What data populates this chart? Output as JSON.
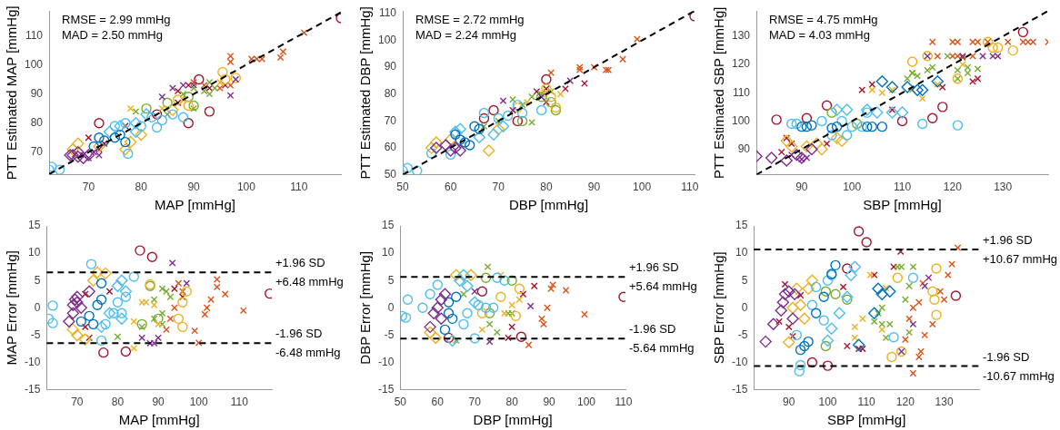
{
  "chart_data": [
    {
      "type": "scatter",
      "xlabel": "MAP [mmHg]",
      "ylabel": "PTT Estimated MAP [mmHg]",
      "xlim": [
        62.5,
        118
      ],
      "ylim": [
        62.3,
        118.5
      ],
      "xticks": [
        70,
        80,
        90,
        100,
        110
      ],
      "yticks": [
        70,
        80,
        90,
        100,
        110
      ],
      "annotations": [
        "RMSE = 2.99 mmHg",
        "MAD = 2.50 mmHg"
      ],
      "series": [
        {
          "type": "line",
          "color": "#000000",
          "line_style": "dashed",
          "x": [
            62.5,
            118
          ],
          "values": [
            62.5,
            118
          ]
        },
        {
          "color": "#7e2f8e",
          "marker": "diamond",
          "x": [
            67,
            68,
            69,
            70,
            68,
            66.5
          ],
          "values": [
            69,
            70,
            68,
            69,
            68.5,
            69
          ]
        },
        {
          "color": "#7e2f8e",
          "marker": "cross",
          "x": [
            69,
            70,
            71,
            72
          ],
          "values": [
            69,
            68,
            70,
            69
          ]
        },
        {
          "color": "#7e2f8e",
          "marker": "cross",
          "x": [
            84,
            86,
            90,
            97,
            98,
            88
          ],
          "values": [
            89,
            92,
            93,
            89.5,
            95,
            93
          ]
        },
        {
          "color": "#0072bd",
          "marker": "circle",
          "x": [
            71,
            72,
            73,
            75,
            77,
            76
          ],
          "values": [
            72,
            75,
            74,
            75,
            73.5,
            76
          ]
        },
        {
          "color": "#4dbeee",
          "marker": "circle",
          "x": [
            75,
            77,
            80,
            82,
            84,
            86,
            88,
            83
          ],
          "values": [
            79,
            80,
            79,
            82,
            81,
            83,
            82,
            78.5
          ]
        },
        {
          "color": "#4dbeee",
          "marker": "diamond",
          "x": [
            74,
            76,
            79,
            81,
            79
          ],
          "values": [
            77,
            79,
            80,
            83,
            77
          ]
        },
        {
          "color": "#4dbeee",
          "marker": "circle",
          "x": [
            62.5,
            63,
            64.5,
            77.5
          ],
          "values": [
            64,
            65,
            64,
            69.5
          ]
        },
        {
          "color": "#edb120",
          "marker": "diamond",
          "x": [
            67,
            68,
            72,
            77,
            78,
            80,
            86
          ],
          "values": [
            71,
            73,
            72,
            71,
            73.5,
            76,
            84.5
          ]
        },
        {
          "color": "#edb120",
          "marker": "circle",
          "x": [
            95.5,
            98,
            89,
            87,
            96
          ],
          "values": [
            97.5,
            95.5,
            86,
            88,
            95
          ]
        },
        {
          "color": "#edb120",
          "marker": "cross",
          "x": [
            78,
            84,
            88,
            95
          ],
          "values": [
            85,
            85,
            88,
            94
          ]
        },
        {
          "color": "#77ac30",
          "marker": "circle",
          "x": [
            81,
            85,
            90,
            89
          ],
          "values": [
            85,
            87,
            86,
            89
          ]
        },
        {
          "color": "#77ac30",
          "marker": "cross",
          "x": [
            88,
            90,
            92,
            93,
            94
          ],
          "values": [
            90,
            92,
            91,
            94,
            92
          ]
        },
        {
          "color": "#77ac30",
          "marker": "cross",
          "x": [
            79,
            85,
            90,
            93
          ],
          "values": [
            84,
            83,
            85,
            90
          ]
        },
        {
          "color": "#d95319",
          "marker": "cross",
          "x": [
            97,
            97,
            101,
            102,
            103,
            106.5,
            107,
            111
          ],
          "values": [
            103,
            101,
            102,
            102,
            102,
            102.5,
            104.5,
            111
          ]
        },
        {
          "color": "#d95319",
          "marker": "cross",
          "x": [
            90,
            92,
            95,
            97
          ],
          "values": [
            94,
            93,
            92,
            93
          ]
        },
        {
          "color": "#a2142f",
          "marker": "cross",
          "x": [
            70,
            72,
            73,
            77,
            93,
            96
          ],
          "values": [
            75,
            71,
            73,
            79,
            92,
            93
          ]
        },
        {
          "color": "#a2142f",
          "marker": "cross",
          "x": [
            87,
            89,
            87
          ],
          "values": [
            91,
            93,
            87
          ]
        },
        {
          "color": "#a2142f",
          "marker": "circle",
          "x": [
            72,
            83,
            89,
            93,
            91,
            118
          ],
          "values": [
            80,
            83,
            80,
            84,
            95,
            116
          ]
        }
      ]
    },
    {
      "type": "scatter",
      "xlabel": "DBP [mmHg]",
      "ylabel": "PTT Estimated DBP [mmHg]",
      "xlim": [
        50,
        111
      ],
      "ylim": [
        50,
        111
      ],
      "xticks": [
        50,
        60,
        70,
        80,
        90,
        100,
        110
      ],
      "yticks": [
        50,
        60,
        70,
        80,
        90,
        100,
        110
      ],
      "annotations": [
        "RMSE = 2.72 mmHg",
        "MAD = 2.24 mmHg"
      ],
      "series": [
        {
          "type": "line",
          "color": "#000000",
          "line_style": "dashed",
          "x": [
            50,
            111
          ],
          "values": [
            50,
            111
          ]
        },
        {
          "color": "#7e2f8e",
          "marker": "diamond",
          "x": [
            57,
            59,
            60,
            61,
            62
          ],
          "values": [
            60,
            61,
            59,
            60,
            59
          ]
        },
        {
          "color": "#7e2f8e",
          "marker": "cross",
          "x": [
            71,
            73,
            85,
            79
          ],
          "values": [
            77.5,
            74,
            85,
            79
          ]
        },
        {
          "color": "#0072bd",
          "marker": "circle",
          "x": [
            61,
            62,
            63,
            64,
            65,
            66
          ],
          "values": [
            65,
            63,
            62,
            61,
            68,
            67
          ]
        },
        {
          "color": "#4dbeee",
          "marker": "circle",
          "x": [
            67,
            70,
            72,
            75,
            79,
            74
          ],
          "values": [
            73,
            71,
            72,
            73,
            74,
            76
          ]
        },
        {
          "color": "#4dbeee",
          "marker": "diamond",
          "x": [
            61,
            62,
            66,
            69,
            71
          ],
          "values": [
            66,
            67,
            64,
            65,
            68
          ]
        },
        {
          "color": "#4dbeee",
          "marker": "circle",
          "x": [
            50,
            51,
            53,
            56,
            60
          ],
          "values": [
            51.5,
            52.5,
            51.5,
            58,
            57.5
          ]
        },
        {
          "color": "#edb120",
          "marker": "diamond",
          "x": [
            56,
            57,
            60,
            68,
            70
          ],
          "values": [
            60,
            62,
            63,
            59,
            67
          ]
        },
        {
          "color": "#edb120",
          "marker": "circle",
          "x": [
            80,
            81,
            82,
            74
          ],
          "values": [
            82,
            79,
            75,
            75
          ]
        },
        {
          "color": "#edb120",
          "marker": "cross",
          "x": [
            73,
            76,
            80,
            83
          ],
          "values": [
            74,
            77,
            81,
            80
          ]
        },
        {
          "color": "#77ac30",
          "marker": "circle",
          "x": [
            75,
            79,
            81,
            82
          ],
          "values": [
            70,
            79,
            77,
            74
          ]
        },
        {
          "color": "#77ac30",
          "marker": "cross",
          "x": [
            73,
            75,
            77,
            79
          ],
          "values": [
            78,
            76,
            79,
            80
          ]
        },
        {
          "color": "#77ac30",
          "marker": "cross",
          "x": [
            67,
            70,
            77,
            81
          ],
          "values": [
            68,
            70,
            69.5,
            81
          ]
        },
        {
          "color": "#d95319",
          "marker": "cross",
          "x": [
            81,
            87,
            87,
            90,
            92.5,
            93,
            96,
            99
          ],
          "values": [
            88,
            89,
            90,
            90,
            89,
            89,
            93,
            100.5
          ]
        },
        {
          "color": "#a2142f",
          "marker": "cross",
          "x": [
            78,
            80,
            84,
            88,
            80
          ],
          "values": [
            81,
            82,
            82,
            84,
            77
          ]
        },
        {
          "color": "#a2142f",
          "marker": "circle",
          "x": [
            67,
            69,
            74,
            80,
            111
          ],
          "values": [
            71,
            74,
            70,
            85.5,
            109
          ]
        }
      ]
    },
    {
      "type": "scatter",
      "xlabel": "SBP [mmHg]",
      "ylabel": "PTT Estimated SBP [mmHg]",
      "xlim": [
        81,
        139
      ],
      "ylim": [
        81,
        139
      ],
      "xticks": [
        90,
        100,
        110,
        120,
        130
      ],
      "yticks": [
        90,
        100,
        110,
        120,
        130
      ],
      "annotations": [
        "RMSE = 4.75 mmHg",
        "MAD = 4.03 mmHg"
      ],
      "series": [
        {
          "type": "line",
          "color": "#000000",
          "line_style": "dashed",
          "x": [
            81,
            139
          ],
          "values": [
            81,
            139
          ]
        },
        {
          "color": "#7e2f8e",
          "marker": "diamond",
          "x": [
            81,
            84,
            87,
            89,
            90,
            92
          ],
          "values": [
            87.5,
            87,
            86,
            88,
            87,
            90
          ]
        },
        {
          "color": "#7e2f8e",
          "marker": "cross",
          "x": [
            88,
            90,
            91
          ],
          "values": [
            88,
            86.5,
            87
          ]
        },
        {
          "color": "#7e2f8e",
          "marker": "cross",
          "x": [
            115,
            126,
            128,
            129,
            122
          ],
          "values": [
            123,
            123,
            123,
            123,
            123
          ]
        },
        {
          "color": "#0072bd",
          "marker": "circle",
          "x": [
            90,
            91,
            92,
            96,
            97,
            103,
            104,
            106
          ],
          "values": [
            98,
            98,
            98.5,
            97.5,
            98,
            98,
            98,
            98
          ]
        },
        {
          "color": "#0072bd",
          "marker": "diamond",
          "x": [
            106,
            108,
            111,
            113,
            114,
            117
          ],
          "values": [
            114,
            112,
            112,
            111,
            111,
            114
          ]
        },
        {
          "color": "#4dbeee",
          "marker": "circle",
          "x": [
            96,
            98,
            99,
            100,
            102,
            103
          ],
          "values": [
            95,
            100,
            95,
            98,
            98,
            103
          ]
        },
        {
          "color": "#4dbeee",
          "marker": "diamond",
          "x": [
            97,
            99,
            103,
            105,
            108,
            110
          ],
          "values": [
            104,
            104,
            104,
            103,
            103,
            103
          ]
        },
        {
          "color": "#4dbeee",
          "marker": "circle",
          "x": [
            88,
            89,
            94,
            114,
            121
          ],
          "values": [
            99,
            99,
            100,
            99,
            98.5
          ]
        },
        {
          "color": "#edb120",
          "marker": "diamond",
          "x": [
            87,
            88,
            91,
            93,
            94,
            97,
            98
          ],
          "values": [
            93,
            91,
            91,
            92,
            90,
            94,
            93
          ]
        },
        {
          "color": "#edb120",
          "marker": "circle",
          "x": [
            112,
            115,
            121,
            127,
            128,
            129,
            132
          ],
          "values": [
            121,
            123,
            115,
            128,
            126,
            126,
            125
          ]
        },
        {
          "color": "#edb120",
          "marker": "cross",
          "x": [
            104,
            106,
            108,
            112,
            114,
            117,
            122
          ],
          "values": [
            111,
            110,
            111,
            111,
            108,
            113,
            120
          ]
        },
        {
          "color": "#77ac30",
          "marker": "circle",
          "x": [
            96,
            101
          ],
          "values": [
            103,
            99
          ]
        },
        {
          "color": "#77ac30",
          "marker": "cross",
          "x": [
            111,
            112,
            113,
            115,
            119,
            121,
            123,
            125
          ],
          "values": [
            115,
            117,
            116,
            118,
            123,
            118,
            117,
            118.5
          ]
        },
        {
          "color": "#77ac30",
          "marker": "cross",
          "x": [
            112,
            116,
            121,
            123
          ],
          "values": [
            117,
            119,
            115,
            119
          ]
        },
        {
          "color": "#d95319",
          "marker": "cross",
          "x": [
            116,
            120,
            121,
            124,
            125,
            127,
            131,
            134,
            135,
            136,
            139
          ],
          "values": [
            128,
            128,
            128,
            128,
            128,
            128,
            128,
            128,
            128,
            128,
            128
          ]
        },
        {
          "color": "#d95319",
          "marker": "cross",
          "x": [
            117,
            120,
            121,
            122,
            124
          ],
          "values": [
            123,
            123,
            123,
            122.5,
            123
          ]
        },
        {
          "color": "#a2142f",
          "marker": "cross",
          "x": [
            87,
            88,
            95,
            86
          ],
          "values": [
            94,
            92,
            92,
            89
          ]
        },
        {
          "color": "#a2142f",
          "marker": "cross",
          "x": [
            102,
            104,
            108,
            118,
            124,
            125
          ],
          "values": [
            111,
            113,
            104,
            112,
            114,
            115
          ]
        },
        {
          "color": "#a2142f",
          "marker": "circle",
          "x": [
            85,
            91,
            95,
            110,
            116,
            118,
            134
          ],
          "values": [
            100.5,
            101,
            105.5,
            100,
            101,
            105,
            131.5
          ]
        }
      ]
    },
    {
      "type": "scatter",
      "xlabel": "MAP [mmHg]",
      "ylabel": "MAP Error [mmHg]",
      "xlim": [
        62.5,
        118
      ],
      "ylim": [
        -15,
        15
      ],
      "xticks": [
        70,
        80,
        90,
        100,
        110
      ],
      "yticks": [
        -15,
        -10,
        -5,
        0,
        5,
        10,
        15
      ],
      "ref_lines": [
        {
          "axis": "y",
          "value": 6.48,
          "label": "+1.96 SD\n+6.48 mmHg",
          "color": "#000000",
          "line_style": "dashed"
        },
        {
          "axis": "y",
          "value": -6.48,
          "label": "-1.96 SD\n-6.48 mmHg",
          "color": "#000000",
          "line_style": "dashed"
        }
      ],
      "series": [
        {
          "color": "#7e2f8e",
          "marker": "diamond",
          "x": [
            68,
            69,
            69,
            69.5,
            70,
            71,
            70,
            73
          ],
          "values": [
            -2.5,
            -1,
            0.5,
            1.5,
            1,
            0,
            2,
            3
          ]
        },
        {
          "color": "#7e2f8e",
          "marker": "cross",
          "x": [
            86,
            88,
            89,
            90,
            93.5,
            97
          ],
          "values": [
            -5.5,
            -6.5,
            -6.5,
            -5.5,
            8.2,
            4.5
          ]
        },
        {
          "color": "#0072bd",
          "marker": "circle",
          "x": [
            71,
            73,
            74,
            75,
            76,
            76
          ],
          "values": [
            -2.5,
            -1.5,
            -3,
            0.5,
            4.5,
            1.5
          ]
        },
        {
          "color": "#4dbeee",
          "marker": "circle",
          "x": [
            76,
            77,
            79,
            80,
            82,
            84,
            81
          ],
          "values": [
            -6,
            -3,
            -1,
            1,
            2,
            5.7,
            -1
          ]
        },
        {
          "color": "#4dbeee",
          "marker": "diamond",
          "x": [
            76,
            78,
            80,
            81,
            82,
            81
          ],
          "values": [
            -3.5,
            -1,
            4,
            5,
            3,
            -2
          ]
        },
        {
          "color": "#4dbeee",
          "marker": "circle",
          "x": [
            63,
            64,
            64,
            73.5
          ],
          "values": [
            -2,
            0.4,
            -2.8,
            8
          ]
        },
        {
          "color": "#edb120",
          "marker": "diamond",
          "x": [
            69,
            70,
            72,
            74,
            75,
            77
          ],
          "values": [
            -4,
            -5,
            -5.8,
            5,
            6.5,
            6.3
          ]
        },
        {
          "color": "#edb120",
          "marker": "circle",
          "x": [
            88,
            96,
            97,
            95,
            96
          ],
          "values": [
            4.3,
            1,
            3,
            -2,
            -3.5
          ]
        },
        {
          "color": "#edb120",
          "marker": "cross",
          "x": [
            84,
            84,
            86,
            87,
            89,
            90
          ],
          "values": [
            -7.4,
            -2.5,
            1,
            1,
            0.5,
            -3
          ]
        },
        {
          "color": "#77ac30",
          "marker": "circle",
          "x": [
            88,
            86,
            90
          ],
          "values": [
            4,
            -3,
            -2
          ]
        },
        {
          "color": "#77ac30",
          "marker": "cross",
          "x": [
            89,
            91,
            92,
            93,
            91
          ],
          "values": [
            -2,
            -1,
            3,
            2,
            -3
          ]
        },
        {
          "color": "#77ac30",
          "marker": "cross",
          "x": [
            80,
            86,
            89,
            91
          ],
          "values": [
            -5.3,
            -3.5,
            1.5,
            3.5
          ]
        },
        {
          "color": "#d95319",
          "marker": "cross",
          "x": [
            99,
            100,
            101.5,
            102,
            103,
            104.5,
            104.5,
            106.5,
            111
          ],
          "values": [
            -4.2,
            -6.4,
            -1.2,
            0,
            1.5,
            5.2,
            3.8,
            2.5,
            -0.5
          ]
        },
        {
          "color": "#d95319",
          "marker": "cross",
          "x": [
            92,
            93,
            94,
            95,
            96
          ],
          "values": [
            -4,
            -2,
            0,
            4.5,
            3
          ]
        },
        {
          "color": "#a2142f",
          "marker": "cross",
          "x": [
            72,
            72,
            73,
            78,
            94,
            96
          ],
          "values": [
            2.5,
            -3.5,
            -5.5,
            3,
            3.5,
            2
          ]
        },
        {
          "color": "#a2142f",
          "marker": "circle",
          "x": [
            76.5,
            82,
            85.5,
            88.5,
            117.5
          ],
          "values": [
            -8.2,
            -8,
            10.5,
            9.3,
            2.6
          ]
        }
      ]
    },
    {
      "type": "scatter",
      "xlabel": "DBP [mmHg]",
      "ylabel": "DBP Error [mmHg]",
      "xlim": [
        50,
        110.5
      ],
      "ylim": [
        -15,
        15
      ],
      "xticks": [
        50,
        60,
        70,
        80,
        90,
        100,
        110
      ],
      "yticks": [
        -15,
        -10,
        -5,
        0,
        5,
        10,
        15
      ],
      "ref_lines": [
        {
          "axis": "y",
          "value": 5.64,
          "label": "+1.96 SD\n+5.64 mmHg",
          "color": "#000000",
          "line_style": "dashed"
        },
        {
          "axis": "y",
          "value": -5.64,
          "label": "-1.96 SD\n-5.64 mmHg",
          "color": "#000000",
          "line_style": "dashed"
        }
      ],
      "series": [
        {
          "color": "#7e2f8e",
          "marker": "diamond",
          "x": [
            58,
            59,
            60,
            61,
            62,
            61
          ],
          "values": [
            -3.5,
            -1,
            0,
            1.5,
            2.5,
            -2
          ]
        },
        {
          "color": "#7e2f8e",
          "marker": "cross",
          "x": [
            74,
            85,
            70
          ],
          "values": [
            -6.2,
            0.3,
            3
          ]
        },
        {
          "color": "#0072bd",
          "marker": "circle",
          "x": [
            62,
            63,
            63,
            64,
            65
          ],
          "values": [
            -4,
            1,
            -1,
            -2,
            2
          ]
        },
        {
          "color": "#4dbeee",
          "marker": "circle",
          "x": [
            67,
            68,
            70,
            71,
            73,
            75,
            76,
            78
          ],
          "values": [
            -3,
            -1,
            -5.6,
            0.5,
            0,
            0,
            5.5,
            5
          ]
        },
        {
          "color": "#4dbeee",
          "marker": "diamond",
          "x": [
            64,
            66,
            67,
            68,
            70
          ],
          "values": [
            -6,
            5,
            6,
            4,
            1
          ]
        },
        {
          "color": "#4dbeee",
          "marker": "circle",
          "x": [
            50.5,
            51.5,
            52,
            56,
            58,
            60
          ],
          "values": [
            -1.5,
            -1.8,
            1.5,
            0,
            2.5,
            4.2
          ]
        },
        {
          "color": "#edb120",
          "marker": "diamond",
          "x": [
            58,
            59.5,
            65,
            69
          ],
          "values": [
            -4.5,
            -5.5,
            6,
            6
          ]
        },
        {
          "color": "#edb120",
          "marker": "circle",
          "x": [
            72,
            77,
            81,
            82
          ],
          "values": [
            -1,
            2,
            -1.5,
            3.5
          ]
        },
        {
          "color": "#edb120",
          "marker": "cross",
          "x": [
            72,
            77,
            78,
            80,
            82
          ],
          "values": [
            -4,
            6,
            -1,
            0.5,
            1.5
          ]
        },
        {
          "color": "#77ac30",
          "marker": "circle",
          "x": [
            73,
            80,
            74
          ],
          "values": [
            5.5,
            5,
            -1
          ]
        },
        {
          "color": "#77ac30",
          "marker": "cross",
          "x": [
            74,
            76,
            79,
            80
          ],
          "values": [
            -3,
            -4.5,
            -1,
            -1
          ]
        },
        {
          "color": "#77ac30",
          "marker": "cross",
          "x": [
            65,
            73.5,
            67
          ],
          "values": [
            -6,
            7.5,
            2.5
          ]
        },
        {
          "color": "#d95319",
          "marker": "cross",
          "x": [
            84.5,
            88,
            88.5,
            89.5,
            90.5,
            91,
            94.5,
            99.5
          ],
          "values": [
            -6.8,
            -2,
            -3,
            0,
            3.5,
            4.2,
            3.2,
            -1.2
          ]
        },
        {
          "color": "#a2142f",
          "marker": "cross",
          "x": [
            79,
            80,
            86,
            83
          ],
          "values": [
            -5.5,
            -3.5,
            4,
            2.5
          ]
        },
        {
          "color": "#a2142f",
          "marker": "circle",
          "x": [
            63,
            72,
            82.5,
            110
          ],
          "values": [
            -5.5,
            3,
            -5.3,
            2
          ]
        }
      ]
    },
    {
      "type": "scatter",
      "xlabel": "SBP [mmHg]",
      "ylabel": "SBP Error [mmHg]",
      "xlim": [
        81,
        139
      ],
      "ylim": [
        -15,
        15
      ],
      "xticks": [
        90,
        100,
        110,
        120,
        130
      ],
      "yticks": [
        -15,
        -10,
        -5,
        0,
        5,
        10,
        15
      ],
      "ref_lines": [
        {
          "axis": "y",
          "value": 10.67,
          "label": "+1.96 SD\n+10.67 mmHg",
          "color": "#000000",
          "line_style": "dashed"
        },
        {
          "axis": "y",
          "value": -10.67,
          "label": "-1.96 SD\n-10.67 mmHg",
          "color": "#000000",
          "line_style": "dashed"
        }
      ],
      "series": [
        {
          "color": "#7e2f8e",
          "marker": "diamond",
          "x": [
            84,
            86,
            88,
            88.5,
            89,
            90,
            91,
            91.5
          ],
          "values": [
            -6.2,
            -3,
            -0.5,
            1,
            2.5,
            3,
            -2,
            2.5
          ]
        },
        {
          "color": "#7e2f8e",
          "marker": "cross",
          "x": [
            119,
            122,
            125,
            126
          ],
          "values": [
            -8,
            -3,
            4,
            5.5
          ]
        },
        {
          "color": "#0072bd",
          "marker": "circle",
          "x": [
            93,
            94,
            95,
            97,
            99,
            101,
            102
          ],
          "values": [
            -7.7,
            -7,
            -6.2,
            -1,
            2,
            6.2,
            7.8
          ]
        },
        {
          "color": "#0072bd",
          "marker": "diamond",
          "x": [
            108,
            112,
            113,
            114,
            116
          ],
          "values": [
            -6.8,
            -1,
            3.5,
            2.5,
            3
          ]
        },
        {
          "color": "#4dbeee",
          "marker": "circle",
          "x": [
            92,
            96,
            97,
            99,
            100,
            101
          ],
          "values": [
            -5,
            0.5,
            3.8,
            -2.3,
            5,
            6
          ]
        },
        {
          "color": "#4dbeee",
          "marker": "diamond",
          "x": [
            100,
            101,
            103,
            105,
            107,
            106
          ],
          "values": [
            -6,
            -3.8,
            -1,
            2,
            7.5,
            6
          ]
        },
        {
          "color": "#4dbeee",
          "marker": "circle",
          "x": [
            93,
            92.7,
            117,
            122
          ],
          "values": [
            -10.5,
            -11.6,
            -5.4,
            5.5
          ]
        },
        {
          "color": "#edb120",
          "marker": "diamond",
          "x": [
            90,
            91,
            92,
            93,
            94,
            95,
            96
          ],
          "values": [
            -6.3,
            0,
            3.5,
            0.5,
            -2,
            3.5,
            5
          ]
        },
        {
          "color": "#edb120",
          "marker": "circle",
          "x": [
            116.5,
            118,
            119,
            127,
            127.5,
            128,
            128
          ],
          "values": [
            -9,
            5.5,
            -8,
            3,
            1.5,
            -1.3,
            7.2
          ]
        },
        {
          "color": "#edb120",
          "marker": "cross",
          "x": [
            107,
            107,
            109,
            111,
            114,
            115
          ],
          "values": [
            -3.5,
            -5.5,
            -2,
            6,
            -4,
            3.6
          ]
        },
        {
          "color": "#77ac30",
          "marker": "circle",
          "x": [
            99.5,
            99.5,
            102,
            105
          ],
          "values": [
            -7,
            3,
            2.5,
            1.5
          ]
        },
        {
          "color": "#77ac30",
          "marker": "cross",
          "x": [
            113,
            114,
            115,
            120,
            121,
            122,
            121
          ],
          "values": [
            -1,
            -3,
            -5.5,
            1.5,
            4,
            7.5,
            -4.5
          ]
        },
        {
          "color": "#77ac30",
          "marker": "cross",
          "x": [
            112,
            114,
            116,
            118,
            119
          ],
          "values": [
            -2.5,
            0,
            -3,
            7.5,
            7.5
          ]
        },
        {
          "color": "#d95319",
          "marker": "cross",
          "x": [
            122,
            123.5,
            124,
            125,
            127,
            129,
            131,
            132,
            133.5,
            130
          ],
          "values": [
            -12,
            -9,
            -8,
            -5,
            -3,
            3,
            6,
            8,
            11,
            1.5
          ]
        },
        {
          "color": "#d95319",
          "marker": "cross",
          "x": [
            120,
            121,
            122,
            123.5,
            124.5
          ],
          "values": [
            -5.8,
            -2,
            0,
            1,
            4.5
          ]
        },
        {
          "color": "#a2142f",
          "marker": "cross",
          "x": [
            87.5,
            89,
            90,
            91,
            93,
            104
          ],
          "values": [
            -2.5,
            4.3,
            -3.5,
            -5.2,
            2.3,
            3.8
          ]
        },
        {
          "color": "#a2142f",
          "marker": "cross",
          "x": [
            105,
            108,
            109,
            112,
            117,
            118.8
          ],
          "values": [
            -7,
            -7.5,
            -7.5,
            6,
            7.5,
            10.3
          ]
        },
        {
          "color": "#a2142f",
          "marker": "circle",
          "x": [
            96,
            100,
            108,
            110,
            133,
            105
          ],
          "values": [
            -10,
            -10.6,
            14,
            12,
            2.2,
            7.2
          ]
        }
      ]
    }
  ]
}
